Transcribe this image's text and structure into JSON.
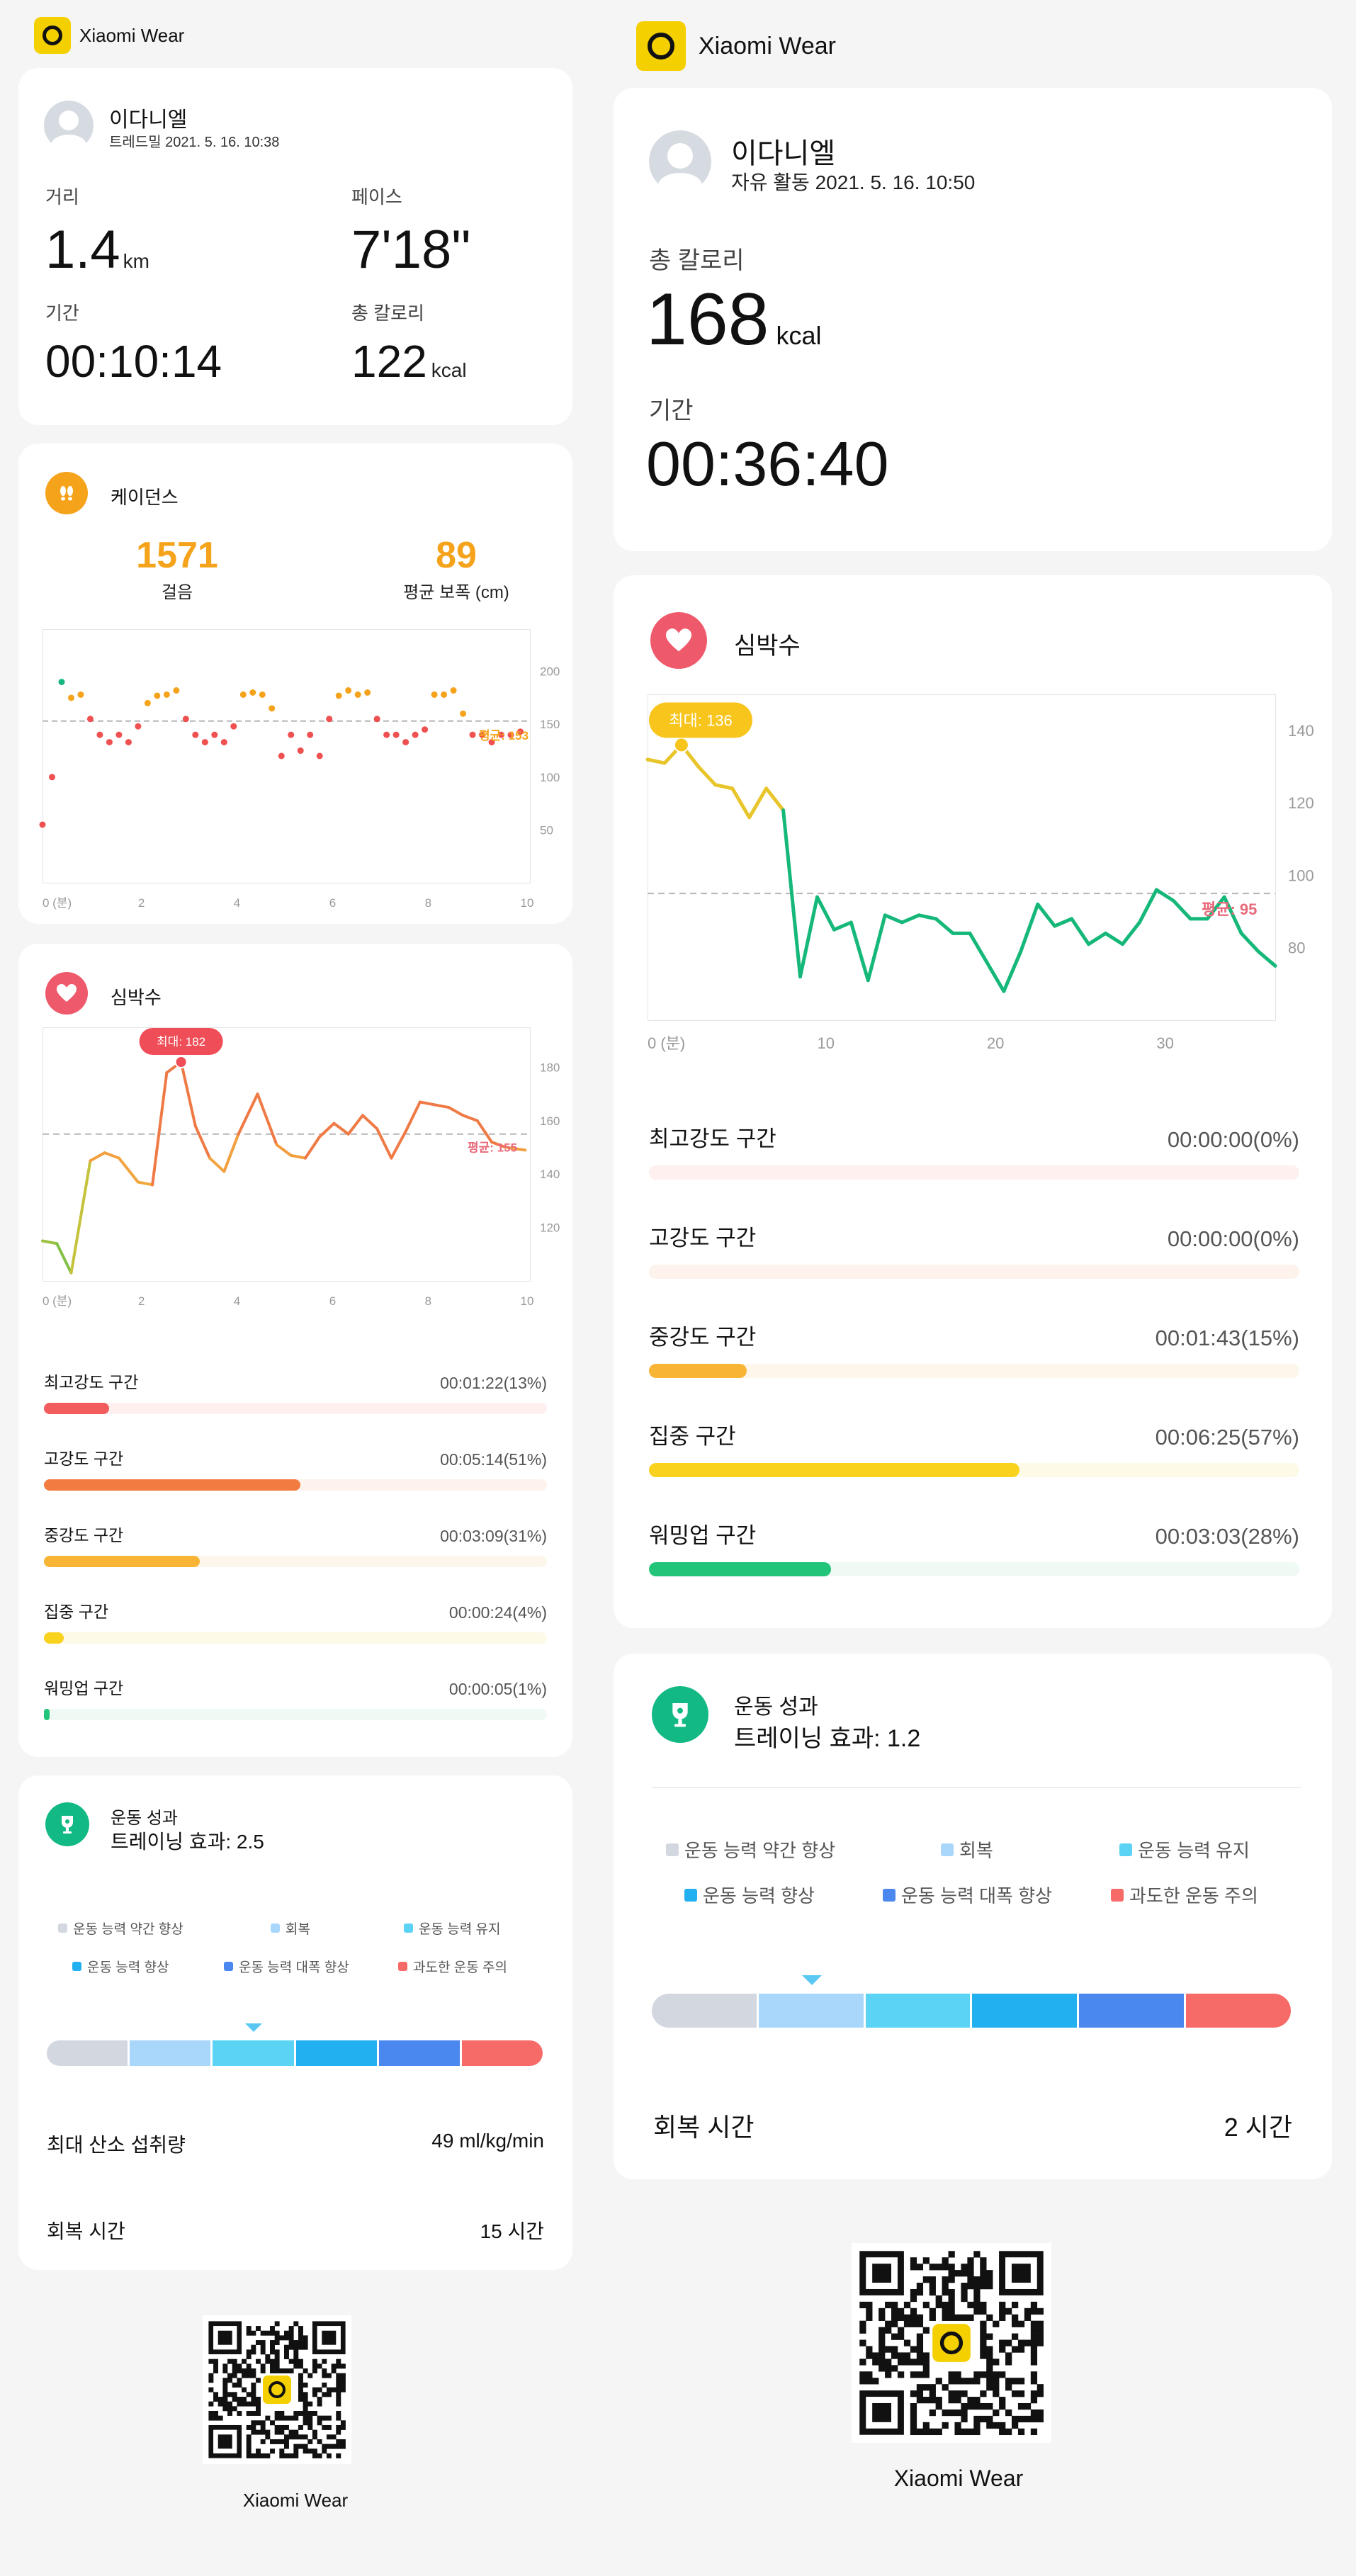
{
  "left": {
    "brand": "Xiaomi Wear",
    "profile": {
      "name": "이다니엘",
      "subtitle": "트레드밀 2021. 5. 16. 10:38"
    },
    "stats": [
      {
        "label": "거리",
        "value": "1.4",
        "unit": "km"
      },
      {
        "label": "페이스",
        "value": "7'18\"",
        "unit": ""
      },
      {
        "label": "기간",
        "value": "00:10:14",
        "unit": ""
      },
      {
        "label": "총 칼로리",
        "value": "122",
        "unit": "kcal"
      }
    ],
    "cadence": {
      "title": "케이던스",
      "steps_value": "1571",
      "steps_label": "걸음",
      "stride_value": "89",
      "stride_label": "평균 보폭 (cm)",
      "avg_label": "평균: 153",
      "y_ticks": [
        "200",
        "150",
        "100",
        "50"
      ],
      "x_ticks": [
        "0 (분)",
        "2",
        "4",
        "6",
        "8",
        "10"
      ]
    },
    "heart": {
      "title": "심박수",
      "max_label": "최대: 182",
      "avg_label": "평균: 155",
      "y_ticks": [
        "180",
        "160",
        "140",
        "120"
      ],
      "x_ticks": [
        "0 (분)",
        "2",
        "4",
        "6",
        "8",
        "10"
      ]
    },
    "zones": [
      {
        "name": "최고강도 구간",
        "time": "00:01:22(13%)",
        "fraction": 0.13,
        "color": "#f25c5c",
        "track": "#fdf0ef"
      },
      {
        "name": "고강도 구간",
        "time": "00:05:14(51%)",
        "fraction": 0.51,
        "color": "#f27b40",
        "track": "#fdf2ec"
      },
      {
        "name": "중강도 구간",
        "time": "00:03:09(31%)",
        "fraction": 0.31,
        "color": "#f8b434",
        "track": "#fdf6ea"
      },
      {
        "name": "집중 구간",
        "time": "00:00:24(4%)",
        "fraction": 0.04,
        "color": "#f9d21e",
        "track": "#fefae8"
      },
      {
        "name": "워밍업 구간",
        "time": "00:00:05(1%)",
        "fraction": 0.01,
        "color": "#22c47a",
        "track": "#eefaf3"
      }
    ],
    "performance": {
      "title": "운동 성과",
      "effect": "트레이닝 효과: 2.5",
      "legend": [
        "운동 능력 약간 향상",
        "회복",
        "운동 능력 유지",
        "운동 능력 향상",
        "운동 능력 대폭 향상",
        "과도한 운동 주의"
      ],
      "level_segment": 2,
      "vo2_label": "최대 산소 섭취량",
      "vo2_value": "49 ml/kg/min",
      "recovery_label": "회복 시간",
      "recovery_value": "15 시간"
    },
    "qr_caption": "Xiaomi Wear"
  },
  "right": {
    "brand": "Xiaomi Wear",
    "profile": {
      "name": "이다니엘",
      "subtitle": "자유 활동 2021. 5. 16. 10:50"
    },
    "calories_label": "총 칼로리",
    "calories_value": "168",
    "calories_unit": "kcal",
    "duration_label": "기간",
    "duration_value": "00:36:40",
    "heart": {
      "title": "심박수",
      "max_label": "최대: 136",
      "avg_label": "평균: 95",
      "y_ticks": [
        "140",
        "120",
        "100",
        "80"
      ],
      "x_ticks": [
        "0 (분)",
        "10",
        "20",
        "30"
      ]
    },
    "zones": [
      {
        "name": "최고강도 구간",
        "time": "00:00:00(0%)",
        "fraction": 0,
        "color": "#f25c5c",
        "track": "#fdf0ef"
      },
      {
        "name": "고강도 구간",
        "time": "00:00:00(0%)",
        "fraction": 0,
        "color": "#f27b40",
        "track": "#fdf2ec"
      },
      {
        "name": "중강도 구간",
        "time": "00:01:43(15%)",
        "fraction": 0.15,
        "color": "#f8b434",
        "track": "#fdf6ea"
      },
      {
        "name": "집중 구간",
        "time": "00:06:25(57%)",
        "fraction": 0.57,
        "color": "#f9d21e",
        "track": "#fefae8"
      },
      {
        "name": "워밍업 구간",
        "time": "00:03:03(28%)",
        "fraction": 0.28,
        "color": "#22c47a",
        "track": "#eefaf3"
      }
    ],
    "performance": {
      "title": "운동 성과",
      "effect": "트레이닝 효과: 1.2",
      "legend": [
        "운동 능력 약간 향상",
        "회복",
        "운동 능력 유지",
        "운동 능력 향상",
        "운동 능력 대폭 향상",
        "과도한 운동 주의"
      ],
      "level_segment": 1,
      "recovery_label": "회복 시간",
      "recovery_value": "2 시간"
    },
    "qr_caption": "Xiaomi Wear"
  },
  "colors": {
    "accent_yellow": "#f5d000",
    "cadence_orange": "#f6a31c",
    "heart_red": "#ee5a6b",
    "performance_green": "#13b985",
    "segments": [
      "#d3d8e0",
      "#a9d6fb",
      "#5ad3f5",
      "#22b0f0",
      "#4a87ee",
      "#f66b68"
    ]
  },
  "chart_data": [
    {
      "type": "scatter",
      "title": "케이던스",
      "x": [
        0,
        0.2,
        0.4,
        0.6,
        0.8,
        1.0,
        1.2,
        1.4,
        1.6,
        1.8,
        2.0,
        2.2,
        2.4,
        2.6,
        2.8,
        3.0,
        3.2,
        3.4,
        3.6,
        3.8,
        4.0,
        4.2,
        4.4,
        4.6,
        4.8,
        5.0,
        5.2,
        5.4,
        5.6,
        5.8,
        6.0,
        6.2,
        6.4,
        6.6,
        6.8,
        7.0,
        7.2,
        7.4,
        7.6,
        7.8,
        8.0,
        8.2,
        8.4,
        8.6,
        8.8,
        9.0,
        9.2,
        9.4,
        9.6,
        9.8,
        10.0
      ],
      "y": [
        55,
        100,
        190,
        175,
        178,
        155,
        140,
        133,
        140,
        133,
        148,
        170,
        177,
        178,
        182,
        155,
        140,
        133,
        140,
        133,
        148,
        178,
        180,
        178,
        165,
        120,
        140,
        125,
        140,
        120,
        155,
        177,
        182,
        178,
        180,
        155,
        140,
        140,
        133,
        140,
        145,
        178,
        178,
        182,
        160,
        140,
        140,
        133,
        140,
        140,
        143
      ],
      "avg": 153,
      "xlabel": "0 (분)",
      "xlim": [
        0,
        10.2
      ],
      "ylim": [
        0,
        240
      ],
      "y_ticks": [
        50,
        100,
        150,
        200
      ],
      "x_ticks": [
        0,
        2,
        4,
        6,
        8,
        10
      ]
    },
    {
      "type": "line",
      "title": "심박수",
      "x": [
        0,
        0.3,
        0.6,
        1.0,
        1.3,
        1.6,
        2.0,
        2.3,
        2.6,
        2.9,
        3.2,
        3.5,
        3.8,
        4.1,
        4.5,
        4.9,
        5.2,
        5.5,
        5.8,
        6.1,
        6.4,
        6.7,
        7.0,
        7.3,
        7.6,
        7.9,
        8.2,
        8.5,
        8.8,
        9.1,
        9.4,
        9.7,
        10.1
      ],
      "y": [
        115,
        114,
        103,
        145,
        148,
        146,
        137,
        136,
        178,
        182,
        158,
        146,
        141,
        155,
        170,
        151,
        147,
        146,
        154,
        159,
        155,
        162,
        157,
        146,
        156,
        167,
        166,
        165,
        162,
        160,
        152,
        150,
        149
      ],
      "max": 182,
      "avg": 155,
      "xlabel": "0 (분)",
      "xlim": [
        0,
        10.2
      ],
      "ylim": [
        100,
        195
      ],
      "y_ticks": [
        120,
        140,
        160,
        180
      ],
      "x_ticks": [
        0,
        2,
        4,
        6,
        8,
        10
      ]
    },
    {
      "type": "line",
      "title": "심박수",
      "x": [
        0,
        1,
        2,
        3,
        4,
        5,
        6,
        7,
        8,
        9,
        10,
        11,
        12,
        13,
        14,
        15,
        16,
        17,
        18,
        19,
        20,
        21,
        22,
        23,
        24,
        25,
        26,
        27,
        28,
        29,
        30,
        31,
        32,
        33,
        34,
        35,
        36,
        37
      ],
      "y": [
        132,
        131,
        136,
        130,
        125,
        124,
        116,
        124,
        118,
        72,
        94,
        85,
        87,
        71,
        89,
        87,
        89,
        88,
        84,
        84,
        76,
        68,
        79,
        92,
        86,
        88,
        81,
        84,
        81,
        87,
        96,
        93,
        88,
        88,
        94,
        84,
        79,
        75
      ],
      "max": 136,
      "avg": 95,
      "xlabel": "0 (분)",
      "xlim": [
        0,
        37
      ],
      "ylim": [
        60,
        150
      ],
      "y_ticks": [
        80,
        100,
        120,
        140
      ],
      "x_ticks": [
        0,
        10,
        20,
        30
      ]
    }
  ]
}
